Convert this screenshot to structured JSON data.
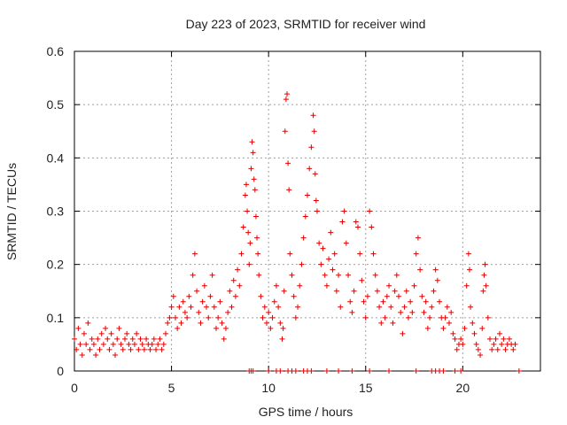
{
  "chart_data": {
    "type": "scatter",
    "title": "Day 223 of 2023, SRMTID for receiver wind",
    "xlabel": "GPS time / hours",
    "ylabel": "SRMTID / TECUs",
    "xlim": [
      0,
      24
    ],
    "ylim": [
      0,
      0.6
    ],
    "xticks": [
      0,
      5,
      10,
      15,
      20
    ],
    "xtick_labels": [
      "0",
      "5",
      "10",
      "15",
      "20"
    ],
    "yticks": [
      0,
      0.1,
      0.2,
      0.3,
      0.4,
      0.5,
      0.6
    ],
    "ytick_labels": [
      "0",
      "0.1",
      "0.2",
      "0.3",
      "0.4",
      "0.5",
      "0.6"
    ],
    "grid": true,
    "marker": "+",
    "color": "#e00000",
    "series": [
      {
        "name": "SRMTID",
        "points": [
          [
            0.0,
            0.06
          ],
          [
            0.1,
            0.04
          ],
          [
            0.2,
            0.08
          ],
          [
            0.3,
            0.05
          ],
          [
            0.4,
            0.03
          ],
          [
            0.5,
            0.07
          ],
          [
            0.6,
            0.05
          ],
          [
            0.7,
            0.09
          ],
          [
            0.8,
            0.04
          ],
          [
            0.9,
            0.06
          ],
          [
            1.0,
            0.05
          ],
          [
            1.1,
            0.03
          ],
          [
            1.2,
            0.06
          ],
          [
            1.3,
            0.04
          ],
          [
            1.4,
            0.07
          ],
          [
            1.5,
            0.05
          ],
          [
            1.6,
            0.08
          ],
          [
            1.7,
            0.06
          ],
          [
            1.8,
            0.04
          ],
          [
            1.9,
            0.07
          ],
          [
            2.0,
            0.05
          ],
          [
            2.1,
            0.03
          ],
          [
            2.2,
            0.06
          ],
          [
            2.3,
            0.08
          ],
          [
            2.4,
            0.05
          ],
          [
            2.5,
            0.04
          ],
          [
            2.6,
            0.06
          ],
          [
            2.7,
            0.07
          ],
          [
            2.8,
            0.05
          ],
          [
            2.9,
            0.04
          ],
          [
            3.0,
            0.06
          ],
          [
            3.1,
            0.05
          ],
          [
            3.2,
            0.07
          ],
          [
            3.3,
            0.04
          ],
          [
            3.4,
            0.06
          ],
          [
            3.5,
            0.05
          ],
          [
            3.6,
            0.04
          ],
          [
            3.7,
            0.06
          ],
          [
            3.8,
            0.05
          ],
          [
            3.9,
            0.04
          ],
          [
            4.0,
            0.05
          ],
          [
            4.1,
            0.06
          ],
          [
            4.2,
            0.04
          ],
          [
            4.3,
            0.05
          ],
          [
            4.4,
            0.06
          ],
          [
            4.5,
            0.04
          ],
          [
            4.6,
            0.05
          ],
          [
            4.7,
            0.07
          ],
          [
            4.8,
            0.09
          ],
          [
            4.9,
            0.1
          ],
          [
            5.0,
            0.12
          ],
          [
            5.1,
            0.14
          ],
          [
            5.2,
            0.1
          ],
          [
            5.3,
            0.08
          ],
          [
            5.4,
            0.12
          ],
          [
            5.5,
            0.09
          ],
          [
            5.6,
            0.13
          ],
          [
            5.7,
            0.11
          ],
          [
            5.8,
            0.1
          ],
          [
            5.9,
            0.14
          ],
          [
            6.0,
            0.12
          ],
          [
            6.1,
            0.18
          ],
          [
            6.2,
            0.22
          ],
          [
            6.3,
            0.15
          ],
          [
            6.4,
            0.11
          ],
          [
            6.5,
            0.09
          ],
          [
            6.6,
            0.13
          ],
          [
            6.7,
            0.16
          ],
          [
            6.8,
            0.12
          ],
          [
            6.9,
            0.1
          ],
          [
            7.0,
            0.14
          ],
          [
            7.1,
            0.18
          ],
          [
            7.2,
            0.12
          ],
          [
            7.3,
            0.08
          ],
          [
            7.4,
            0.1
          ],
          [
            7.5,
            0.13
          ],
          [
            7.6,
            0.09
          ],
          [
            7.7,
            0.06
          ],
          [
            7.8,
            0.08
          ],
          [
            7.9,
            0.11
          ],
          [
            8.0,
            0.15
          ],
          [
            8.1,
            0.12
          ],
          [
            8.2,
            0.17
          ],
          [
            8.3,
            0.14
          ],
          [
            8.4,
            0.19
          ],
          [
            8.5,
            0.16
          ],
          [
            8.6,
            0.22
          ],
          [
            8.7,
            0.27
          ],
          [
            8.8,
            0.33
          ],
          [
            8.85,
            0.35
          ],
          [
            8.9,
            0.3
          ],
          [
            8.95,
            0.26
          ],
          [
            9.0,
            0.2
          ],
          [
            9.05,
            0.24
          ],
          [
            9.1,
            0.38
          ],
          [
            9.15,
            0.43
          ],
          [
            9.2,
            0.41
          ],
          [
            9.25,
            0.36
          ],
          [
            9.3,
            0.34
          ],
          [
            9.35,
            0.29
          ],
          [
            9.4,
            0.25
          ],
          [
            9.45,
            0.22
          ],
          [
            9.5,
            0.18
          ],
          [
            9.6,
            0.14
          ],
          [
            9.7,
            0.1
          ],
          [
            9.8,
            0.12
          ],
          [
            9.9,
            0.09
          ],
          [
            10.0,
            0.11
          ],
          [
            10.1,
            0.08
          ],
          [
            10.2,
            0.1
          ],
          [
            10.3,
            0.13
          ],
          [
            10.4,
            0.16
          ],
          [
            10.5,
            0.12
          ],
          [
            10.6,
            0.09
          ],
          [
            10.7,
            0.06
          ],
          [
            10.75,
            0.08
          ],
          [
            10.8,
            0.15
          ],
          [
            10.85,
            0.45
          ],
          [
            10.9,
            0.51
          ],
          [
            10.95,
            0.52
          ],
          [
            11.0,
            0.39
          ],
          [
            11.05,
            0.34
          ],
          [
            11.1,
            0.22
          ],
          [
            11.2,
            0.18
          ],
          [
            11.3,
            0.14
          ],
          [
            11.4,
            0.1
          ],
          [
            11.5,
            0.12
          ],
          [
            11.6,
            0.16
          ],
          [
            11.7,
            0.2
          ],
          [
            11.8,
            0.25
          ],
          [
            11.9,
            0.29
          ],
          [
            12.0,
            0.33
          ],
          [
            12.1,
            0.38
          ],
          [
            12.2,
            0.42
          ],
          [
            12.3,
            0.48
          ],
          [
            12.35,
            0.45
          ],
          [
            12.4,
            0.37
          ],
          [
            12.45,
            0.32
          ],
          [
            12.5,
            0.3
          ],
          [
            12.6,
            0.24
          ],
          [
            12.7,
            0.2
          ],
          [
            12.8,
            0.23
          ],
          [
            12.9,
            0.18
          ],
          [
            13.0,
            0.16
          ],
          [
            13.1,
            0.21
          ],
          [
            13.2,
            0.26
          ],
          [
            13.3,
            0.19
          ],
          [
            13.4,
            0.22
          ],
          [
            13.5,
            0.15
          ],
          [
            13.6,
            0.18
          ],
          [
            13.7,
            0.12
          ],
          [
            13.8,
            0.28
          ],
          [
            13.9,
            0.3
          ],
          [
            14.0,
            0.24
          ],
          [
            14.1,
            0.18
          ],
          [
            14.2,
            0.13
          ],
          [
            14.3,
            0.11
          ],
          [
            14.4,
            0.15
          ],
          [
            14.5,
            0.28
          ],
          [
            14.6,
            0.27
          ],
          [
            14.7,
            0.22
          ],
          [
            14.8,
            0.17
          ],
          [
            14.9,
            0.13
          ],
          [
            15.0,
            0.1
          ],
          [
            15.1,
            0.14
          ],
          [
            15.2,
            0.3
          ],
          [
            15.3,
            0.27
          ],
          [
            15.4,
            0.22
          ],
          [
            15.5,
            0.18
          ],
          [
            15.6,
            0.15
          ],
          [
            15.7,
            0.12
          ],
          [
            15.8,
            0.09
          ],
          [
            15.9,
            0.13
          ],
          [
            16.0,
            0.1
          ],
          [
            16.1,
            0.14
          ],
          [
            16.2,
            0.16
          ],
          [
            16.3,
            0.12
          ],
          [
            16.4,
            0.09
          ],
          [
            16.5,
            0.15
          ],
          [
            16.6,
            0.18
          ],
          [
            16.7,
            0.14
          ],
          [
            16.8,
            0.11
          ],
          [
            16.9,
            0.07
          ],
          [
            17.0,
            0.12
          ],
          [
            17.1,
            0.15
          ],
          [
            17.2,
            0.1
          ],
          [
            17.3,
            0.13
          ],
          [
            17.4,
            0.11
          ],
          [
            17.5,
            0.16
          ],
          [
            17.6,
            0.22
          ],
          [
            17.7,
            0.25
          ],
          [
            17.8,
            0.19
          ],
          [
            17.9,
            0.14
          ],
          [
            18.0,
            0.11
          ],
          [
            18.1,
            0.13
          ],
          [
            18.2,
            0.08
          ],
          [
            18.3,
            0.1
          ],
          [
            18.4,
            0.12
          ],
          [
            18.5,
            0.15
          ],
          [
            18.6,
            0.19
          ],
          [
            18.7,
            0.17
          ],
          [
            18.8,
            0.13
          ],
          [
            18.9,
            0.1
          ],
          [
            19.0,
            0.08
          ],
          [
            19.1,
            0.1
          ],
          [
            19.2,
            0.12
          ],
          [
            19.3,
            0.09
          ],
          [
            19.4,
            0.11
          ],
          [
            19.5,
            0.07
          ],
          [
            19.6,
            0.06
          ],
          [
            19.7,
            0.04
          ],
          [
            19.8,
            0.05
          ],
          [
            19.9,
            0.06
          ],
          [
            20.0,
            0.05
          ],
          [
            20.1,
            0.08
          ],
          [
            20.2,
            0.16
          ],
          [
            20.3,
            0.22
          ],
          [
            20.35,
            0.19
          ],
          [
            20.4,
            0.12
          ],
          [
            20.5,
            0.09
          ],
          [
            20.6,
            0.07
          ],
          [
            20.7,
            0.05
          ],
          [
            20.8,
            0.04
          ],
          [
            20.9,
            0.03
          ],
          [
            21.0,
            0.08
          ],
          [
            21.05,
            0.15
          ],
          [
            21.1,
            0.18
          ],
          [
            21.15,
            0.2
          ],
          [
            21.2,
            0.16
          ],
          [
            21.3,
            0.1
          ],
          [
            21.4,
            0.06
          ],
          [
            21.5,
            0.04
          ],
          [
            21.6,
            0.05
          ],
          [
            21.7,
            0.06
          ],
          [
            21.8,
            0.04
          ],
          [
            21.9,
            0.07
          ],
          [
            22.0,
            0.05
          ],
          [
            22.1,
            0.06
          ],
          [
            22.2,
            0.04
          ],
          [
            22.3,
            0.05
          ],
          [
            22.4,
            0.06
          ],
          [
            22.5,
            0.05
          ],
          [
            22.6,
            0.04
          ],
          [
            22.7,
            0.05
          ]
        ],
        "zero_points": [
          [
            9.0,
            0
          ],
          [
            9.1,
            0
          ],
          [
            9.2,
            0
          ],
          [
            10.0,
            0
          ],
          [
            10.4,
            0
          ],
          [
            10.6,
            0
          ],
          [
            11.0,
            0
          ],
          [
            11.2,
            0
          ],
          [
            11.4,
            0
          ],
          [
            11.8,
            0
          ],
          [
            12.0,
            0
          ],
          [
            12.2,
            0
          ],
          [
            13.0,
            0
          ],
          [
            13.6,
            0
          ],
          [
            14.3,
            0
          ],
          [
            15.2,
            0
          ],
          [
            16.2,
            0
          ],
          [
            17.6,
            0
          ],
          [
            18.4,
            0
          ],
          [
            18.6,
            0
          ],
          [
            18.8,
            0
          ],
          [
            19.0,
            0
          ],
          [
            19.6,
            0
          ],
          [
            19.9,
            0
          ],
          [
            22.9,
            0
          ]
        ]
      }
    ]
  }
}
